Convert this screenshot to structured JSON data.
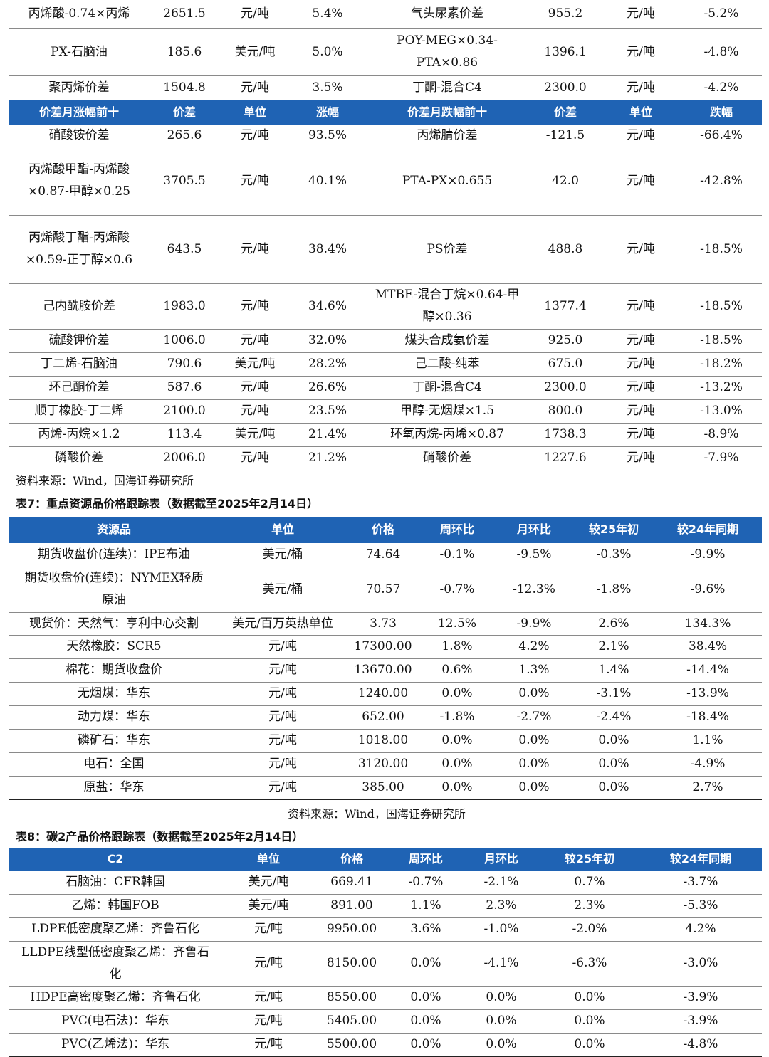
{
  "table6": {
    "top_rows": [
      {
        "left": [
          "丙烯酸-0.74×丙烯",
          "2651.5",
          "元/吨",
          "5.4%"
        ],
        "right": [
          "气头尿素价差",
          "955.2",
          "元/吨",
          "-5.2%"
        ]
      },
      {
        "left": [
          "PX-石脑油",
          "185.6",
          "美元/吨",
          "5.0%"
        ],
        "right": [
          "POY-MEG×0.34-PTA×0.86",
          "1396.1",
          "元/吨",
          "-4.8%"
        ]
      },
      {
        "left": [
          "聚丙烯价差",
          "1504.8",
          "元/吨",
          "3.5%"
        ],
        "right": [
          "丁酮-混合C4",
          "2300.0",
          "元/吨",
          "-4.2%"
        ]
      }
    ],
    "headers": [
      "价差月涨幅前十",
      "价差",
      "单位",
      "涨幅",
      "价差月跌幅前十",
      "价差",
      "单位",
      "跌幅"
    ],
    "rows": [
      {
        "left": [
          "硝酸铵价差",
          "265.6",
          "元/吨",
          "93.5%"
        ],
        "right": [
          "丙烯腈价差",
          "-121.5",
          "元/吨",
          "-66.4%"
        ]
      },
      {
        "left": [
          "丙烯酸甲酯-丙烯酸×0.87-甲醇×0.25",
          "3705.5",
          "元/吨",
          "40.1%"
        ],
        "right": [
          "PTA-PX×0.655",
          "42.0",
          "元/吨",
          "-42.8%"
        ]
      },
      {
        "left": [
          "丙烯酸丁酯-丙烯酸×0.59-正丁醇×0.6",
          "643.5",
          "元/吨",
          "38.4%"
        ],
        "right": [
          "PS价差",
          "488.8",
          "元/吨",
          "-18.5%"
        ]
      },
      {
        "left": [
          "己内酰胺价差",
          "1983.0",
          "元/吨",
          "34.6%"
        ],
        "right": [
          "MTBE-混合丁烷×0.64-甲醇×0.36",
          "1377.4",
          "元/吨",
          "-18.5%"
        ]
      },
      {
        "left": [
          "硫酸钾价差",
          "1006.0",
          "元/吨",
          "32.0%"
        ],
        "right": [
          "煤头合成氨价差",
          "925.0",
          "元/吨",
          "-18.5%"
        ]
      },
      {
        "left": [
          "丁二烯-石脑油",
          "790.6",
          "美元/吨",
          "28.2%"
        ],
        "right": [
          "己二酸-纯苯",
          "675.0",
          "元/吨",
          "-18.2%"
        ]
      },
      {
        "left": [
          "环己酮价差",
          "587.6",
          "元/吨",
          "26.6%"
        ],
        "right": [
          "丁酮-混合C4",
          "2300.0",
          "元/吨",
          "-13.2%"
        ]
      },
      {
        "left": [
          "顺丁橡胶-丁二烯",
          "2100.0",
          "元/吨",
          "23.5%"
        ],
        "right": [
          "甲醇-无烟煤×1.5",
          "800.0",
          "元/吨",
          "-13.0%"
        ]
      },
      {
        "left": [
          "丙烯-丙烷×1.2",
          "113.4",
          "美元/吨",
          "21.4%"
        ],
        "right": [
          "环氧丙烷-丙烯×0.87",
          "1738.3",
          "元/吨",
          "-8.9%"
        ]
      },
      {
        "left": [
          "磷酸价差",
          "2006.0",
          "元/吨",
          "21.2%"
        ],
        "right": [
          "硝酸价差",
          "1227.6",
          "元/吨",
          "-7.9%"
        ]
      }
    ],
    "source": "资料来源：Wind，国海证券研究所"
  },
  "table7": {
    "caption": "表7：重点资源品价格跟踪表（数据截至2025年2月14日）",
    "headers": [
      "资源品",
      "单位",
      "价格",
      "周环比",
      "月环比",
      "较25年初",
      "较24年同期"
    ],
    "rows": [
      [
        "期货收盘价(连续)：IPE布油",
        "美元/桶",
        "74.64",
        "-0.1%",
        "-9.5%",
        "-0.3%",
        "-9.9%"
      ],
      [
        "期货收盘价(连续)：NYMEX轻质原油",
        "美元/桶",
        "70.57",
        "-0.7%",
        "-12.3%",
        "-1.8%",
        "-9.6%"
      ],
      [
        "现货价：天然气：亨利中心交割",
        "美元/百万英热单位",
        "3.73",
        "12.5%",
        "-9.9%",
        "2.6%",
        "134.3%"
      ],
      [
        "天然橡胶：SCR5",
        "元/吨",
        "17300.00",
        "1.8%",
        "4.2%",
        "2.1%",
        "38.4%"
      ],
      [
        "棉花：期货收盘价",
        "元/吨",
        "13670.00",
        "0.6%",
        "1.3%",
        "1.4%",
        "-14.4%"
      ],
      [
        "无烟煤：华东",
        "元/吨",
        "1240.00",
        "0.0%",
        "0.0%",
        "-3.1%",
        "-13.9%"
      ],
      [
        "动力煤：华东",
        "元/吨",
        "652.00",
        "-1.8%",
        "-2.7%",
        "-2.4%",
        "-18.4%"
      ],
      [
        "磷矿石：华东",
        "元/吨",
        "1018.00",
        "0.0%",
        "0.0%",
        "0.0%",
        "1.1%"
      ],
      [
        "电石：全国",
        "元/吨",
        "3120.00",
        "0.0%",
        "0.0%",
        "0.0%",
        "-4.9%"
      ],
      [
        "原盐：华东",
        "元/吨",
        "385.00",
        "0.0%",
        "0.0%",
        "0.0%",
        "2.7%"
      ]
    ],
    "source": "资料来源：Wind，国海证券研究所"
  },
  "table8": {
    "caption": "表8：碳2产品价格跟踪表（数据截至2025年2月14日）",
    "headers": [
      "C2",
      "单位",
      "价格",
      "周环比",
      "月环比",
      "较25年初",
      "较24年同期"
    ],
    "rows": [
      [
        "石脑油：CFR韩国",
        "美元/吨",
        "669.41",
        "-0.7%",
        "-2.1%",
        "0.7%",
        "-3.7%"
      ],
      [
        "乙烯：韩国FOB",
        "美元/吨",
        "891.00",
        "1.1%",
        "2.3%",
        "2.3%",
        "-5.3%"
      ],
      [
        "LDPE低密度聚乙烯：齐鲁石化",
        "元/吨",
        "9950.00",
        "3.6%",
        "-1.0%",
        "-2.0%",
        "4.2%"
      ],
      [
        "LLDPE线型低密度聚乙烯：齐鲁石化",
        "元/吨",
        "8150.00",
        "0.0%",
        "-4.1%",
        "-6.3%",
        "-3.0%"
      ],
      [
        "HDPE高密度聚乙烯：齐鲁石化",
        "元/吨",
        "8550.00",
        "0.0%",
        "0.0%",
        "0.0%",
        "-3.9%"
      ],
      [
        "PVC(电石法)：华东",
        "元/吨",
        "5405.00",
        "0.0%",
        "0.0%",
        "0.0%",
        "-3.9%"
      ],
      [
        "PVC(乙烯法)：华东",
        "元/吨",
        "5500.00",
        "0.0%",
        "0.0%",
        "0.0%",
        "-4.8%"
      ]
    ]
  }
}
